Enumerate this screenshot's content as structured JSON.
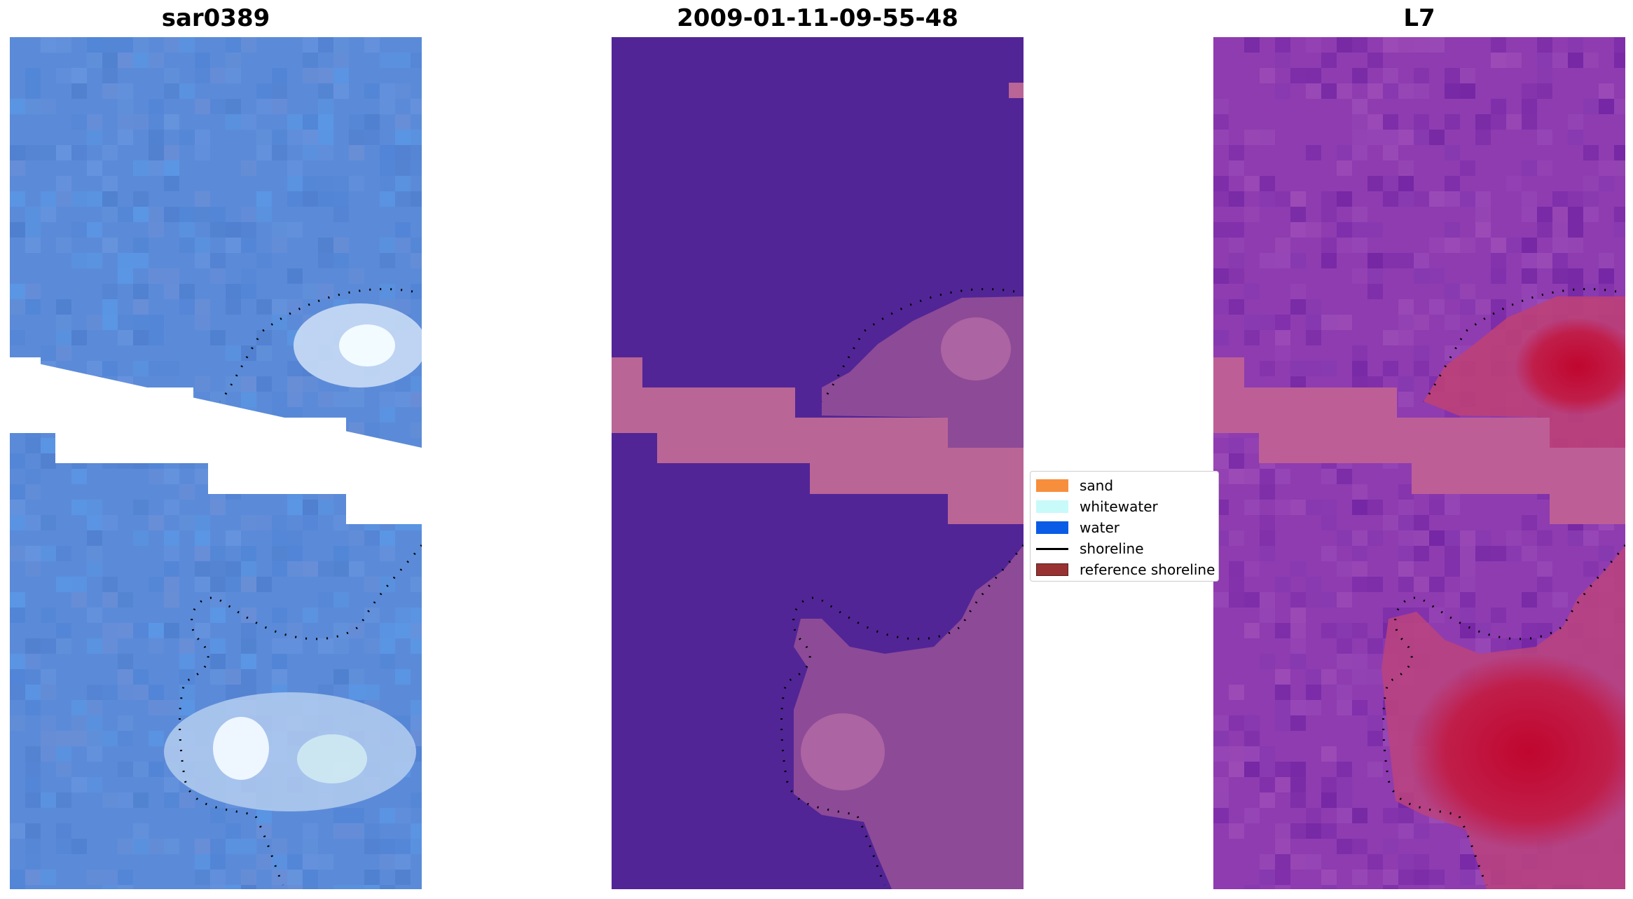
{
  "panels": [
    {
      "title": "sar0389"
    },
    {
      "title": "2009-01-11-09-55-48"
    },
    {
      "title": "L7"
    }
  ],
  "legend": {
    "items": [
      {
        "label": "sand",
        "color": "#f78e3c"
      },
      {
        "label": "whitewater",
        "color": "#c8fafa"
      },
      {
        "label": "water",
        "color": "#0a5ce6"
      },
      {
        "label": "shoreline",
        "color": "#000000"
      },
      {
        "label": "reference shoreline",
        "color": "#983232"
      }
    ]
  },
  "colors": {
    "rgb_water": "#5b8bd8",
    "class_water": "#522596",
    "class_band": "#b96596",
    "ndwi_base": "#8e3cb0",
    "ndwi_high": "#c0062e"
  }
}
